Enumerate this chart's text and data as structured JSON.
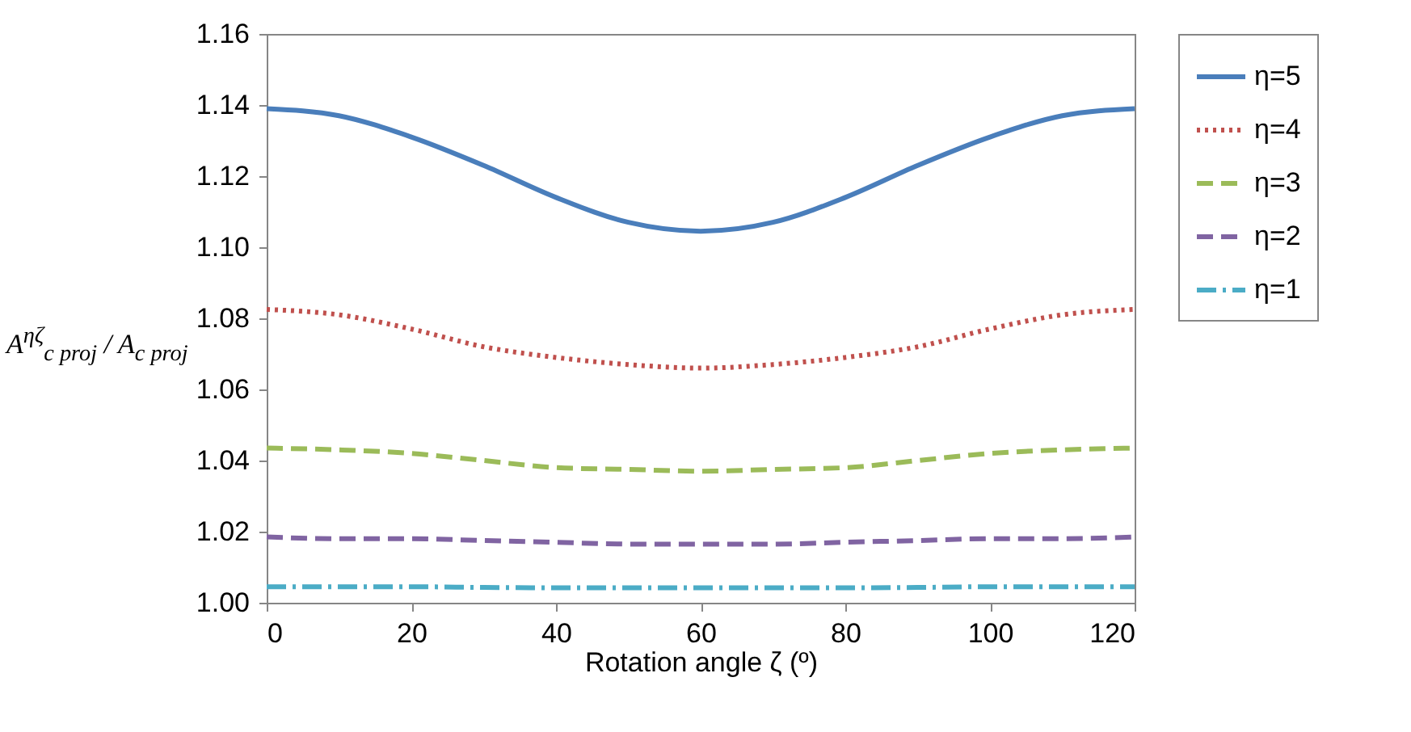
{
  "chart_data": {
    "type": "line",
    "xlabel": "Rotation angle ζ (º)",
    "ylabel": "A$^{ηζ}$$_{c proj}$ / A$_{c proj}$",
    "x": [
      0,
      10,
      20,
      30,
      40,
      50,
      60,
      70,
      80,
      90,
      100,
      110,
      120
    ],
    "xlim": [
      0,
      120
    ],
    "xticks": [
      0,
      20,
      40,
      60,
      80,
      100,
      120
    ],
    "ylim": [
      1.0,
      1.16
    ],
    "yticks": [
      {
        "value": 1.0,
        "label": "1.00"
      },
      1.02,
      1.04,
      1.06,
      1.08,
      {
        "value": 1.1,
        "label": "1.10"
      },
      1.12,
      1.14,
      1.16
    ],
    "grid": false,
    "legend": "right",
    "marker": "none",
    "series": [
      {
        "name": "η=5",
        "color": "#4a7ebb",
        "line_style": "solid",
        "values": [
          1.139,
          1.137,
          1.131,
          1.123,
          1.114,
          1.107,
          1.1045,
          1.107,
          1.114,
          1.123,
          1.131,
          1.137,
          1.139
        ]
      },
      {
        "name": "η=4",
        "color": "#c0504d",
        "line_style": "dotted",
        "values": [
          1.0825,
          1.081,
          1.077,
          1.072,
          1.069,
          1.067,
          1.066,
          1.067,
          1.069,
          1.072,
          1.077,
          1.081,
          1.0825
        ]
      },
      {
        "name": "η=3",
        "color": "#9bbb59",
        "line_style": "dashed",
        "values": [
          1.0435,
          1.043,
          1.042,
          1.04,
          1.038,
          1.0375,
          1.037,
          1.0375,
          1.038,
          1.04,
          1.042,
          1.043,
          1.0435
        ]
      },
      {
        "name": "η=2",
        "color": "#8064a2",
        "line_style": "dashed",
        "values": [
          1.0185,
          1.018,
          1.018,
          1.0175,
          1.017,
          1.0165,
          1.0165,
          1.0165,
          1.017,
          1.0175,
          1.018,
          1.018,
          1.0185
        ]
      },
      {
        "name": "η=1",
        "color": "#4bacc6",
        "line_style": "dashdot",
        "values": [
          1.0045,
          1.0045,
          1.0045,
          1.0043,
          1.0042,
          1.0042,
          1.0042,
          1.0042,
          1.0042,
          1.0043,
          1.0045,
          1.0045,
          1.0045
        ]
      }
    ]
  }
}
